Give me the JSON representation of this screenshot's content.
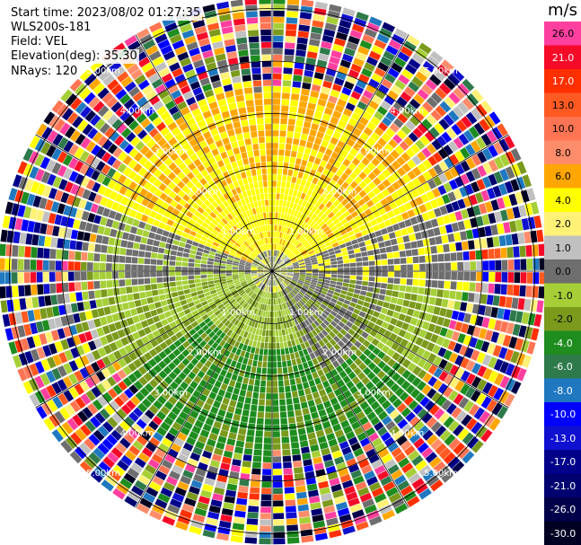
{
  "header": {
    "start_time": "Start time: 2023/08/02 01:27:35",
    "instrument": "WLS200s-181",
    "field": "Field: VEL",
    "elevation": "Elevation(deg): 35.30",
    "nrays": "NRays: 120"
  },
  "colorbar": {
    "unit": "m/s",
    "bins": [
      {
        "label": "26.0",
        "color": "#ff3f9f"
      },
      {
        "label": "21.0",
        "color": "#f50a28"
      },
      {
        "label": "17.0",
        "color": "#ff2f00"
      },
      {
        "label": "13.0",
        "color": "#ff5a21"
      },
      {
        "label": "10.0",
        "color": "#ff7453"
      },
      {
        "label": "8.0",
        "color": "#ff8c6a"
      },
      {
        "label": "6.0",
        "color": "#ffa600"
      },
      {
        "label": "4.0",
        "color": "#ffff00"
      },
      {
        "label": "2.0",
        "color": "#fff176"
      },
      {
        "label": "1.0",
        "color": "#c0c0c0"
      },
      {
        "label": "0.0",
        "color": "#6e6e6e"
      },
      {
        "label": "-1.0",
        "color": "#a6cf37"
      },
      {
        "label": "-2.0",
        "color": "#7b9a1c"
      },
      {
        "label": "-4.0",
        "color": "#1e8c1e"
      },
      {
        "label": "-6.0",
        "color": "#2e7a4a"
      },
      {
        "label": "-8.0",
        "color": "#1f78c0"
      },
      {
        "label": "-10.0",
        "color": "#0000ff"
      },
      {
        "label": "-13.0",
        "color": "#1010d0"
      },
      {
        "label": "-17.0",
        "color": "#00008b"
      },
      {
        "label": "-21.0",
        "color": "#000070"
      },
      {
        "label": "-26.0",
        "color": "#00004a"
      },
      {
        "label": "-30.0",
        "color": "#000022"
      }
    ]
  },
  "chart_data": {
    "type": "heatmap",
    "projection": "polar-ppi",
    "field": "VEL",
    "unit": "m/s",
    "n_rays": 120,
    "elevation_deg": 35.3,
    "range_rings_km": [
      1.0,
      2.0,
      3.0,
      4.0,
      5.0
    ],
    "ring_labels": [
      "1.00km",
      "2.00km",
      "3.00km",
      "4.00km",
      "5.00km"
    ],
    "spoke_angles_deg": [
      0,
      30,
      60,
      90,
      120,
      150,
      180,
      210,
      240,
      270,
      300,
      330
    ],
    "value_range": [
      -30.0,
      26.0
    ],
    "pattern": "yellow/orange (positive velocity) dominant to the north, gray near zero in the centre-east, green (negative velocity) to the south and west, multicolour noise beyond ~3.3 km range"
  }
}
